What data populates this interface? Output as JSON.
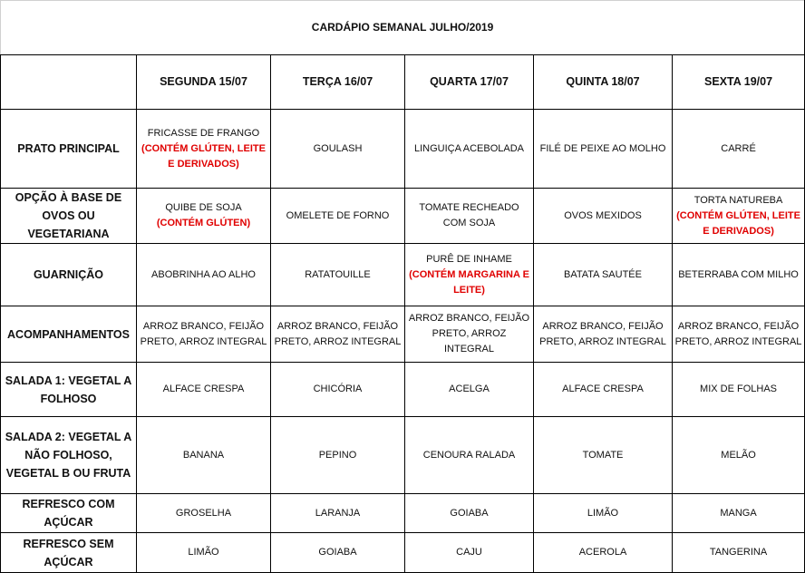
{
  "title": "CARDÁPIO SEMANAL JULHO/2019",
  "days": [
    "SEGUNDA   15/07",
    "TERÇA 16/07",
    "QUARTA 17/07",
    "QUINTA 18/07",
    "SEXTA 19/07"
  ],
  "colors": {
    "allergen_warning": "#e00000",
    "border": "#000000"
  },
  "rows": [
    {
      "label": "PRATO PRINCIPAL",
      "cells": [
        {
          "text": "FRICASSE DE FRANGO",
          "warning": "(CONTÉM GLÚTEN, LEITE E DERIVADOS)"
        },
        {
          "text": "GOULASH"
        },
        {
          "text": "LINGUIÇA ACEBOLADA"
        },
        {
          "text": "FILÉ DE PEIXE AO MOLHO"
        },
        {
          "text": "CARRÉ"
        }
      ]
    },
    {
      "label": "OPÇÃO À BASE DE OVOS OU VEGETARIANA",
      "cells": [
        {
          "text": "QUIBE DE SOJA",
          "warning": "(CONTÉM GLÚTEN)"
        },
        {
          "text": "OMELETE DE FORNO"
        },
        {
          "text": "TOMATE RECHEADO COM SOJA"
        },
        {
          "text": "OVOS MEXIDOS"
        },
        {
          "text": "TORTA NATUREBA",
          "warning": "(CONTÉM GLÚTEN, LEITE E DERIVADOS)"
        }
      ]
    },
    {
      "label": "GUARNIÇÃO",
      "cells": [
        {
          "text": "ABOBRINHA AO ALHO"
        },
        {
          "text": "RATATOUILLE"
        },
        {
          "text": "PURÊ DE INHAME",
          "warning": "(CONTÉM MARGARINA E LEITE)"
        },
        {
          "text": "BATATA SAUTÉE"
        },
        {
          "text": "BETERRABA COM  MILHO"
        }
      ]
    },
    {
      "label": "ACOMPANHAMENTOS",
      "cells": [
        {
          "text": "ARROZ BRANCO, FEIJÃO PRETO, ARROZ INTEGRAL"
        },
        {
          "text": "ARROZ BRANCO, FEIJÃO PRETO, ARROZ INTEGRAL"
        },
        {
          "text": "ARROZ BRANCO, FEIJÃO PRETO, ARROZ INTEGRAL"
        },
        {
          "text": "ARROZ BRANCO, FEIJÃO PRETO, ARROZ INTEGRAL"
        },
        {
          "text": "ARROZ BRANCO, FEIJÃO PRETO, ARROZ INTEGRAL"
        }
      ]
    },
    {
      "label": "SALADA 1: VEGETAL A FOLHOSO",
      "cells": [
        {
          "text": "ALFACE CRESPA"
        },
        {
          "text": "CHICÓRIA"
        },
        {
          "text": "ACELGA"
        },
        {
          "text": "ALFACE CRESPA"
        },
        {
          "text": "MIX DE FOLHAS"
        }
      ]
    },
    {
      "label": "SALADA 2: VEGETAL A NÃO FOLHOSO, VEGETAL B OU FRUTA",
      "cells": [
        {
          "text": "BANANA"
        },
        {
          "text": "PEPINO"
        },
        {
          "text": "CENOURA RALADA"
        },
        {
          "text": "TOMATE"
        },
        {
          "text": "MELÃO"
        }
      ]
    },
    {
      "label": "REFRESCO COM AÇÚCAR",
      "cells": [
        {
          "text": "GROSELHA"
        },
        {
          "text": "LARANJA"
        },
        {
          "text": "GOIABA"
        },
        {
          "text": "LIMÃO"
        },
        {
          "text": "MANGA"
        }
      ]
    },
    {
      "label": "REFRESCO SEM AÇÚCAR",
      "cells": [
        {
          "text": "LIMÃO"
        },
        {
          "text": "GOIABA"
        },
        {
          "text": "CAJU"
        },
        {
          "text": "ACEROLA"
        },
        {
          "text": "TANGERINA"
        }
      ]
    }
  ]
}
